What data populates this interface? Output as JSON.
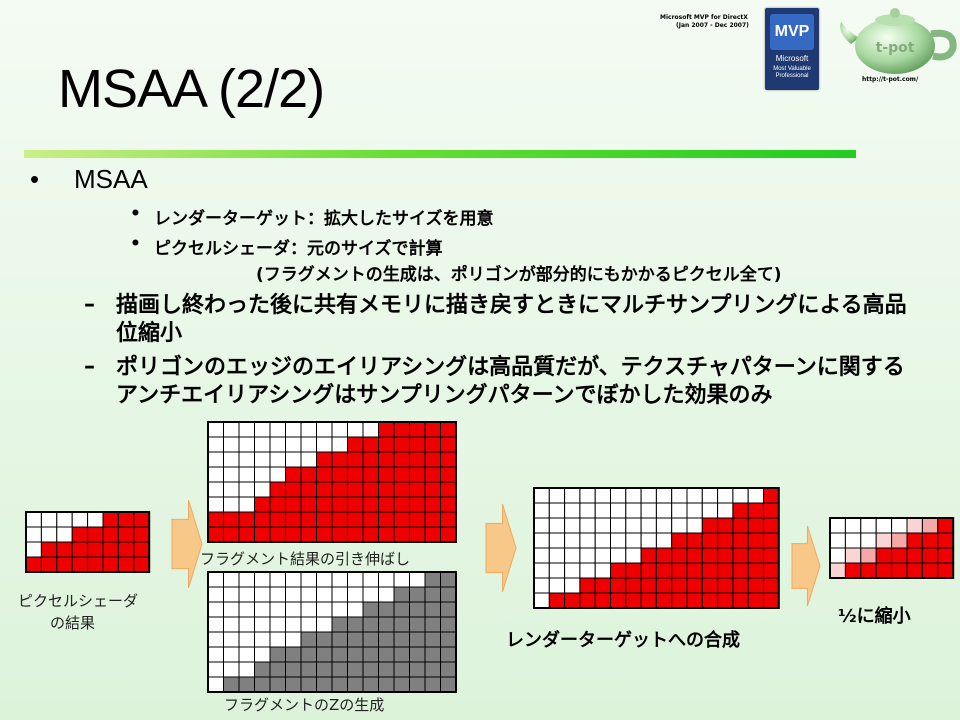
{
  "slide": {
    "title": "MSAA (2/2)",
    "logo_line1": "Microsoft MVP for DirectX",
    "logo_line2": "(Jan 2007 - Dec 2007)",
    "mvp_badge": "MVP",
    "mvp_line1": "Microsoft",
    "mvp_line2": "Most Valuable Professional",
    "teapot_label": "t-pot",
    "site_url": "http://t-pot.com/"
  },
  "bullets": {
    "main": "MSAA",
    "sub1": "レンダーターゲット：拡大したサイズを用意",
    "sub2": "ピクセルシェーダ：元のサイズで計算",
    "sub2_note": "(フラグメントの生成は、ポリゴンが部分的にもかかるピクセル全て)",
    "dash1": "描画し終わった後に共有メモリに描き戻すときにマルチサンプリングによる高品位縮小",
    "dash2": "ポリゴンのエッジのエイリアシングは高品質だが、テクスチャパターンに関するアンチエイリアシングはサンプリングパターンでぼかした効果のみ",
    "dash_marker": "–",
    "bullet_marker": "•"
  },
  "diagram": {
    "caption_pixel_line1": "ピクセルシェーダ",
    "caption_pixel_line2": "の結果",
    "caption_stretch": "フラグメント結果の引き伸ばし",
    "caption_z": "フラグメントのZの生成",
    "caption_composite": "レンダーターゲットへの合成",
    "caption_half": "½に縮小",
    "colors": {
      "red": "#ee0000",
      "gray": "#808080",
      "pink": "#f5a8a8",
      "light_pink": "#fbd5d5",
      "arrow": "#f8c888"
    }
  }
}
